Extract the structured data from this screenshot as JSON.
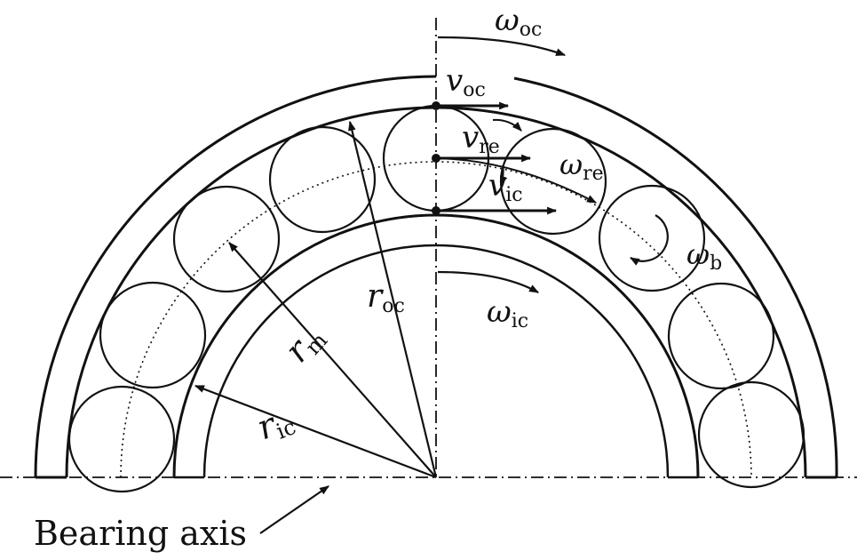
{
  "diagram": {
    "stroke_color": "#111111",
    "background": "#ffffff",
    "labels": {
      "omega_oc": {
        "main": "ω",
        "sub": "oc"
      },
      "v_oc": {
        "main": "v",
        "sub": "oc"
      },
      "v_re": {
        "main": "v",
        "sub": "re"
      },
      "omega_re": {
        "main": "ω",
        "sub": "re"
      },
      "v_ic": {
        "main": "v",
        "sub": "ic"
      },
      "omega_b": {
        "main": "ω",
        "sub": "b"
      },
      "r_oc": {
        "main": "r",
        "sub": "oc"
      },
      "omega_ic": {
        "main": "ω",
        "sub": "ic"
      },
      "r_m": {
        "main": "r",
        "sub": "m"
      },
      "r_ic": {
        "main": "r",
        "sub": "ic"
      }
    },
    "bearing_axis_label": "Bearing axis"
  }
}
